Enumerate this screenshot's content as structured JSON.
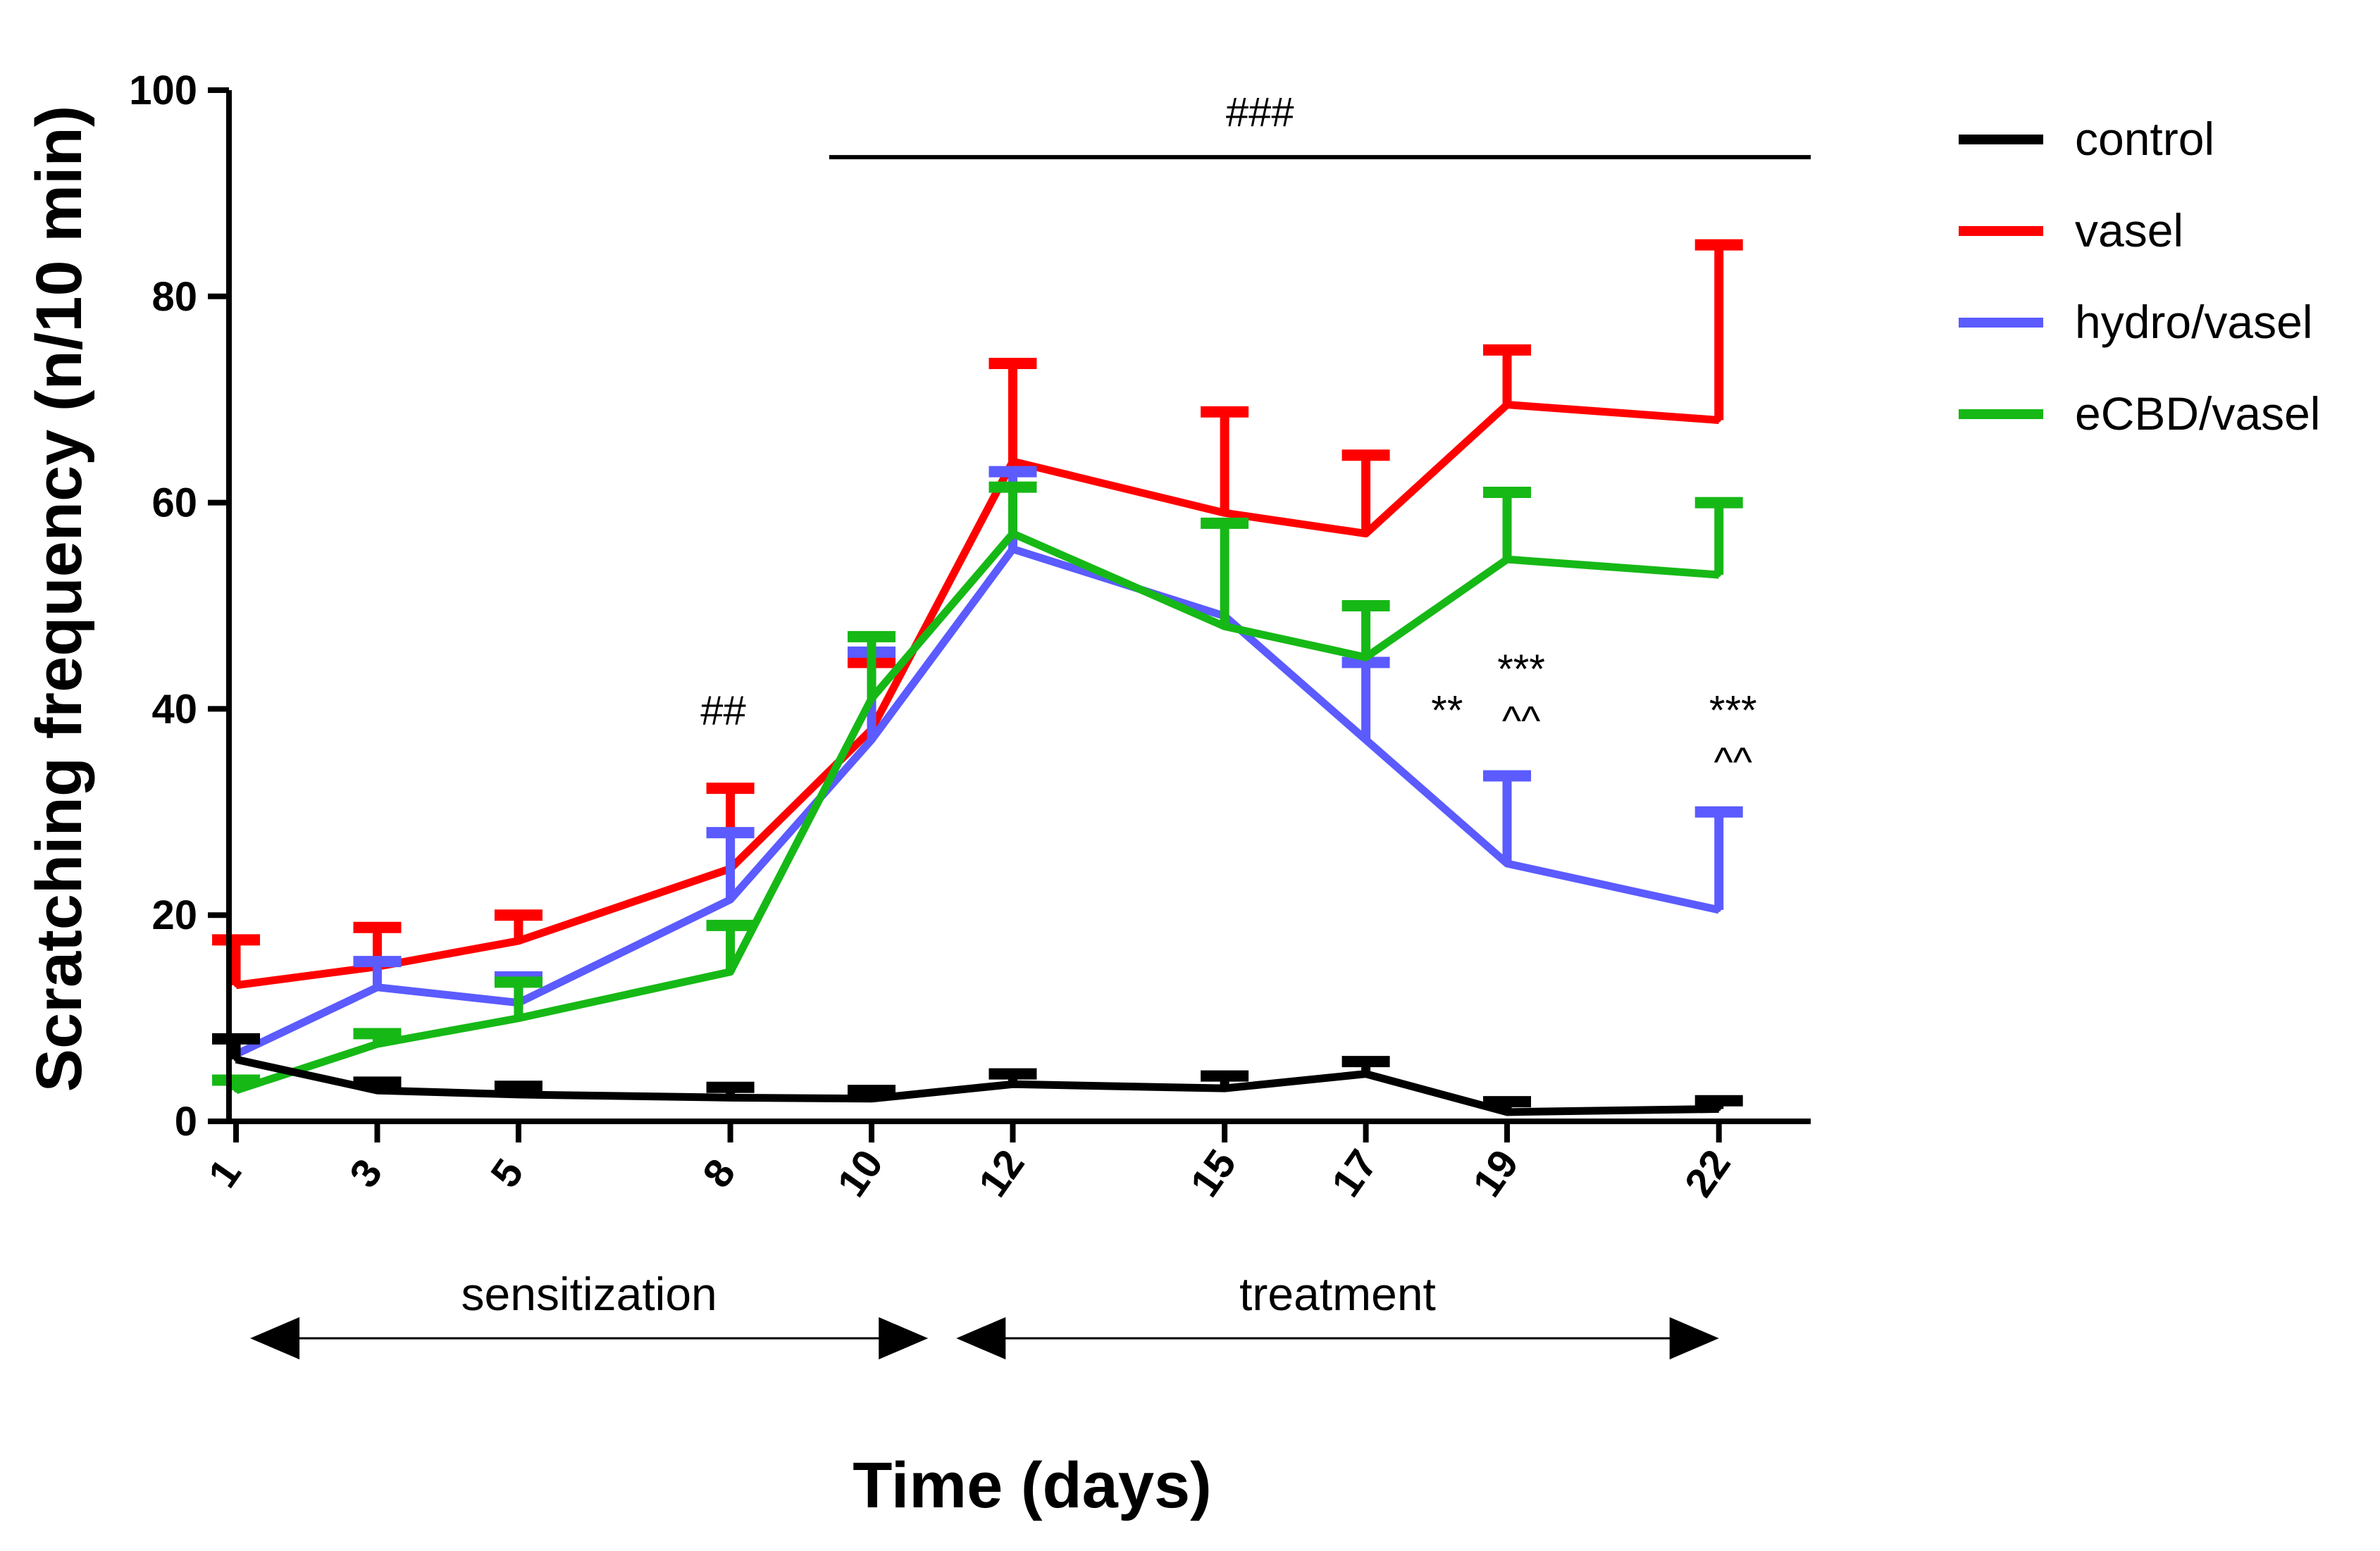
{
  "chart_data": {
    "type": "line",
    "xlabel": "Time (days)",
    "ylabel": "Scratching frequency (n/10 min)",
    "x": [
      1,
      3,
      5,
      8,
      10,
      12,
      15,
      17,
      19,
      22
    ],
    "xlim": [
      0.9,
      23.3
    ],
    "ylim": [
      0,
      100
    ],
    "yticks": [
      0,
      20,
      40,
      60,
      80,
      100
    ],
    "grid": false,
    "legend_position": "top-right",
    "error_bars": "upper",
    "series": [
      {
        "name": "vasel",
        "color": "#ff0000",
        "values": [
          13.2,
          15,
          17.5,
          24.5,
          38,
          64,
          59,
          57,
          69.5,
          68
        ],
        "errors": [
          4.4,
          3.8,
          2.5,
          7.8,
          6.5,
          9.5,
          9.8,
          7.6,
          5.3,
          17
        ]
      },
      {
        "name": "hydro/vasel",
        "color": "#5b5bff",
        "values": [
          6.5,
          13,
          11.5,
          21.5,
          37,
          55.5,
          49,
          37,
          25,
          20.5
        ],
        "errors": [
          1.5,
          2.5,
          2.5,
          6.5,
          8.5,
          7.5,
          0,
          7.5,
          8.5,
          9.5
        ]
      },
      {
        "name": "eCBD/vasel",
        "color": "#16b816",
        "values": [
          3,
          7.5,
          10,
          14.5,
          41,
          57,
          48,
          45,
          54.5,
          53
        ],
        "errors": [
          1,
          1,
          3.5,
          4.5,
          6,
          4.5,
          10,
          5,
          6.5,
          7
        ]
      },
      {
        "name": "control",
        "color": "#000000",
        "values": [
          6,
          3,
          2.6,
          2.3,
          2.2,
          3.6,
          3.2,
          4.6,
          0.9,
          1.2
        ],
        "errors": [
          2,
          0.8,
          0.8,
          1,
          0.8,
          1,
          1.2,
          1.2,
          1,
          0.8
        ]
      }
    ],
    "legend_order": [
      "control",
      "vasel",
      "hydro/vasel",
      "eCBD/vasel"
    ],
    "annotations": [
      {
        "text": "###",
        "x": 15.5,
        "y": 96.5
      },
      {
        "text": "##",
        "x": 7.9,
        "y": 38.5
      },
      {
        "text": "**",
        "x": 18.15,
        "y": 38.5
      },
      {
        "text": "***",
        "x": 19.2,
        "y": 42.5
      },
      {
        "text": "^^",
        "x": 19.2,
        "y": 37.5
      },
      {
        "text": "***",
        "x": 22.2,
        "y": 38.5
      },
      {
        "text": "^^",
        "x": 22.2,
        "y": 33.5
      }
    ],
    "significance_bar": {
      "x_from": 9.4,
      "x_to": 23.3,
      "y": 93.5
    },
    "phases": [
      {
        "label": "sensitization",
        "x_from": 1.2,
        "x_to": 10.8
      },
      {
        "label": "treatment",
        "x_from": 11.2,
        "x_to": 22
      }
    ]
  }
}
